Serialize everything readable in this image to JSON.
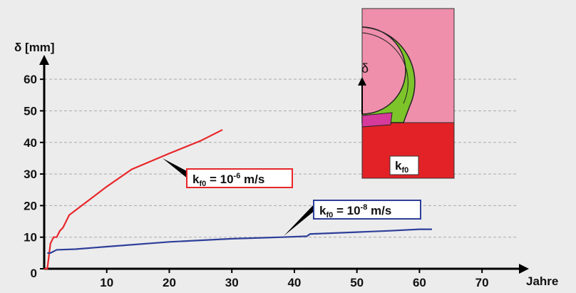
{
  "chart_data": {
    "type": "line",
    "y_label": "δ [mm]",
    "x_label": "Jahre",
    "xlim": [
      0,
      75
    ],
    "ylim": [
      0,
      65
    ],
    "xticks": [
      10,
      20,
      30,
      40,
      50,
      60,
      70
    ],
    "yticks": [
      0,
      10,
      20,
      30,
      40,
      50,
      60
    ],
    "grid": true,
    "series": [
      {
        "color": "#e8262a",
        "x": [
          0,
          0.5,
          1,
          1.5,
          2,
          2.5,
          3,
          4,
          6,
          10,
          14,
          20,
          25,
          28.5
        ],
        "values": [
          0,
          0,
          8,
          10,
          10,
          12,
          13,
          17,
          20,
          26,
          31.5,
          36.5,
          40.5,
          44
        ]
      },
      {
        "color": "#2e3f9a",
        "x": [
          0.5,
          1,
          2,
          5,
          10,
          20,
          30,
          38,
          42,
          42.5,
          50,
          55,
          60,
          62
        ],
        "values": [
          5,
          5,
          6,
          6.2,
          7,
          8.5,
          9.5,
          10,
          10.3,
          11,
          11.6,
          12,
          12.5,
          12.5
        ]
      }
    ],
    "annotations": [
      {
        "parts": [
          "k",
          "f0",
          " = 10",
          "-6",
          " m/s"
        ],
        "color": "#e8262a"
      },
      {
        "parts": [
          "k",
          "f0",
          " = 10",
          "-8",
          " m/s"
        ],
        "color": "#2e3f9a"
      }
    ],
    "inset": {
      "arrow_label": "δ",
      "soil_label": [
        "k",
        "f0"
      ]
    }
  }
}
